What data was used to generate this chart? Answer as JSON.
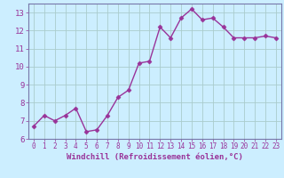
{
  "x": [
    0,
    1,
    2,
    3,
    4,
    5,
    6,
    7,
    8,
    9,
    10,
    11,
    12,
    13,
    14,
    15,
    16,
    17,
    18,
    19,
    20,
    21,
    22,
    23
  ],
  "y": [
    6.7,
    7.3,
    7.0,
    7.3,
    7.7,
    6.4,
    6.5,
    7.3,
    8.3,
    8.7,
    10.2,
    10.3,
    12.2,
    11.6,
    12.7,
    13.2,
    12.6,
    12.7,
    12.2,
    11.6,
    11.6,
    11.6,
    11.7,
    11.6
  ],
  "xlim": [
    -0.5,
    23.5
  ],
  "ylim": [
    6,
    13.5
  ],
  "yticks": [
    6,
    7,
    8,
    9,
    10,
    11,
    12,
    13
  ],
  "xticks": [
    0,
    1,
    2,
    3,
    4,
    5,
    6,
    7,
    8,
    9,
    10,
    11,
    12,
    13,
    14,
    15,
    16,
    17,
    18,
    19,
    20,
    21,
    22,
    23
  ],
  "xlabel": "Windchill (Refroidissement éolien,°C)",
  "line_color": "#993399",
  "marker": "D",
  "marker_size": 2.5,
  "bg_color": "#cceeff",
  "grid_color": "#aacccc",
  "tick_color": "#993399",
  "label_color": "#993399",
  "linewidth": 1.0,
  "spine_color": "#7777aa",
  "xlabel_fontsize": 6.5,
  "tick_fontsize": 5.5,
  "ytick_fontsize": 6.5
}
